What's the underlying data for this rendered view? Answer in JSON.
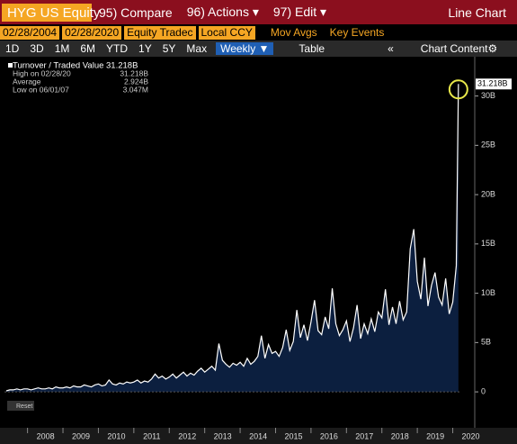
{
  "ui": {
    "ticker": "HYG US Equity",
    "menu": [
      "95) Compare",
      "96) Actions ▾",
      "97) Edit ▾"
    ],
    "view": "Line Chart",
    "start": "02/28/2004",
    "end": "02/28/2020",
    "field": "Equity Tradec",
    "currency": "Local CCY",
    "toggles": [
      "Mov Avgs",
      "Key Events"
    ],
    "ranges": [
      "1D",
      "3D",
      "1M",
      "6M",
      "YTD",
      "1Y",
      "5Y",
      "Max"
    ],
    "frequency": "Weekly ▼",
    "table": "Table",
    "collapse": "«",
    "content": "Chart Content",
    "gear": "⚙",
    "reset": "Reset"
  },
  "chart_data": {
    "type": "area",
    "color": "#ffffff",
    "fill": "#0c1f3f",
    "legend": [
      {
        "label": "Turnover / Traded Value 31.218B"
      },
      {
        "label": "High on 02/28/20",
        "value": "31.218B"
      },
      {
        "label": "Average",
        "value": "2.924B"
      },
      {
        "label": "Low on 06/01/07",
        "value": "3.047M"
      }
    ],
    "x": [
      2007.4,
      2007.5,
      2007.6,
      2007.7,
      2007.8,
      2007.9,
      2008.0,
      2008.1,
      2008.2,
      2008.3,
      2008.4,
      2008.5,
      2008.6,
      2008.7,
      2008.8,
      2008.9,
      2009.0,
      2009.1,
      2009.2,
      2009.3,
      2009.4,
      2009.5,
      2009.6,
      2009.7,
      2009.8,
      2009.9,
      2010.0,
      2010.1,
      2010.2,
      2010.3,
      2010.4,
      2010.5,
      2010.6,
      2010.7,
      2010.8,
      2010.9,
      2011.0,
      2011.1,
      2011.2,
      2011.3,
      2011.4,
      2011.5,
      2011.6,
      2011.7,
      2011.8,
      2011.9,
      2012.0,
      2012.1,
      2012.2,
      2012.3,
      2012.4,
      2012.5,
      2012.6,
      2012.7,
      2012.8,
      2012.9,
      2013.0,
      2013.1,
      2013.2,
      2013.3,
      2013.4,
      2013.5,
      2013.6,
      2013.7,
      2013.8,
      2013.9,
      2014.0,
      2014.1,
      2014.2,
      2014.3,
      2014.4,
      2014.5,
      2014.6,
      2014.7,
      2014.8,
      2014.9,
      2015.0,
      2015.1,
      2015.2,
      2015.3,
      2015.4,
      2015.5,
      2015.6,
      2015.7,
      2015.8,
      2015.9,
      2016.0,
      2016.1,
      2016.2,
      2016.3,
      2016.4,
      2016.5,
      2016.6,
      2016.7,
      2016.8,
      2016.9,
      2017.0,
      2017.1,
      2017.2,
      2017.3,
      2017.4,
      2017.5,
      2017.6,
      2017.7,
      2017.8,
      2017.9,
      2018.0,
      2018.1,
      2018.2,
      2018.3,
      2018.4,
      2018.5,
      2018.6,
      2018.7,
      2018.8,
      2018.9,
      2019.0,
      2019.1,
      2019.2,
      2019.3,
      2019.4,
      2019.5,
      2019.6,
      2019.7,
      2019.8,
      2019.9,
      2020.0,
      2020.1,
      2020.16
    ],
    "values": [
      0.1,
      0.2,
      0.2,
      0.3,
      0.2,
      0.3,
      0.3,
      0.2,
      0.3,
      0.4,
      0.3,
      0.3,
      0.4,
      0.3,
      0.5,
      0.4,
      0.4,
      0.5,
      0.4,
      0.6,
      0.5,
      0.5,
      0.7,
      0.6,
      0.5,
      0.7,
      0.8,
      0.6,
      0.7,
      1.2,
      0.8,
      0.7,
      0.9,
      0.8,
      1.0,
      0.9,
      1.0,
      1.2,
      0.9,
      1.1,
      1.0,
      1.3,
      1.8,
      1.4,
      1.6,
      1.3,
      1.5,
      1.8,
      1.4,
      1.7,
      2.0,
      1.6,
      1.9,
      1.7,
      2.1,
      2.4,
      2.0,
      2.3,
      2.6,
      2.2,
      4.9,
      3.2,
      2.8,
      2.5,
      2.9,
      2.7,
      3.0,
      2.6,
      3.4,
      2.8,
      3.1,
      3.6,
      5.7,
      3.4,
      4.8,
      3.9,
      4.1,
      3.6,
      4.5,
      6.3,
      4.2,
      5.1,
      8.3,
      5.5,
      6.8,
      5.2,
      7.1,
      9.3,
      6.2,
      5.8,
      7.6,
      6.4,
      10.5,
      6.9,
      5.7,
      6.3,
      7.2,
      5.1,
      6.5,
      8.8,
      5.4,
      6.9,
      5.9,
      7.4,
      6.1,
      8.1,
      7.5,
      10.4,
      6.8,
      8.6,
      6.9,
      9.2,
      7.3,
      8.1,
      14.5,
      16.5,
      11.2,
      9.4,
      13.6,
      8.7,
      10.8,
      12.1,
      9.6,
      8.8,
      11.5,
      7.9,
      9.1,
      12.8,
      31.218
    ],
    "xlim": [
      2007.35,
      2020.24
    ],
    "xticks": [
      2008,
      2009,
      2010,
      2011,
      2012,
      2013,
      2014,
      2015,
      2016,
      2017,
      2018,
      2019,
      2020
    ],
    "ylim": [
      -2,
      33.8
    ],
    "yticks": [
      0,
      {
        "value": 5,
        "label": "5B"
      },
      {
        "value": 10,
        "label": "10B"
      },
      {
        "value": 15,
        "label": "15B"
      },
      {
        "value": 20,
        "label": "20B"
      },
      {
        "value": 25,
        "label": "25B"
      },
      {
        "value": 30,
        "label": "30B"
      }
    ]
  }
}
